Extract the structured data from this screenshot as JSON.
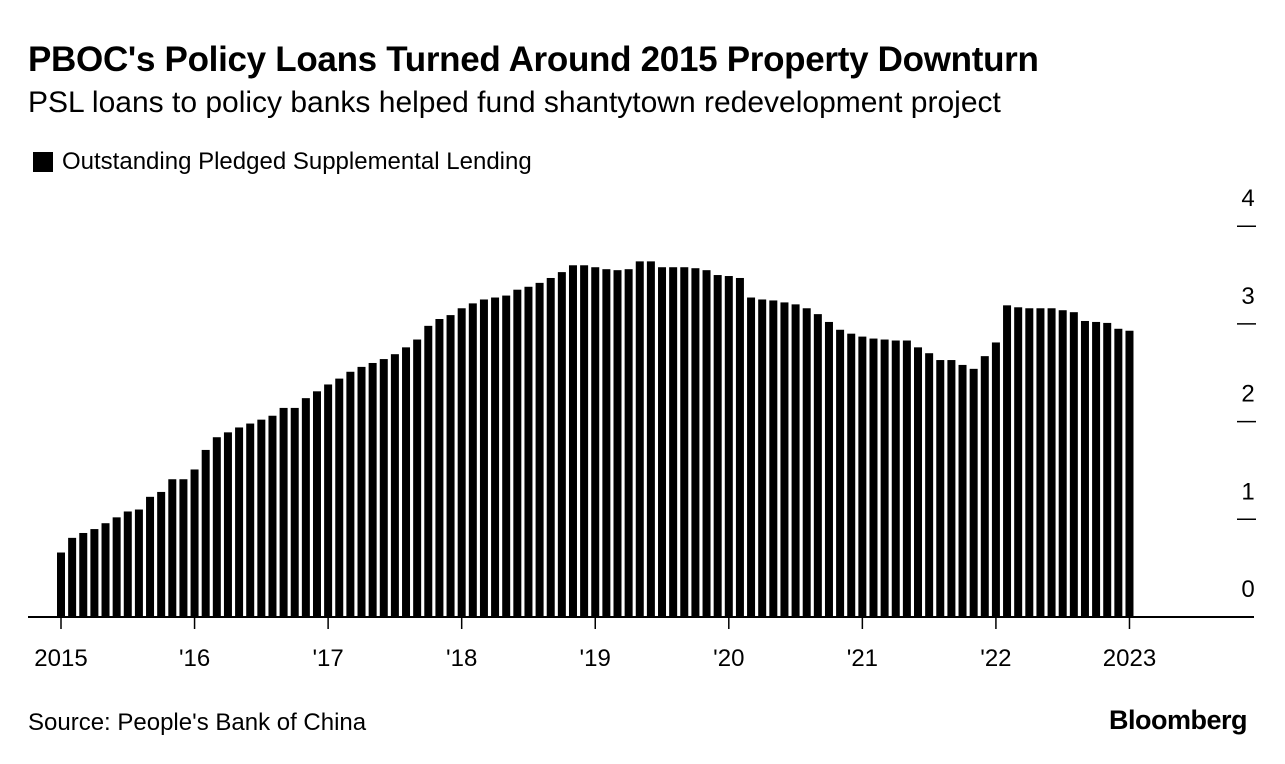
{
  "title": "PBOC's Policy Loans Turned Around 2015 Property Downturn",
  "subtitle": "PSL loans to policy banks helped fund shantytown redevelopment project",
  "source": "Source: People's Bank of China",
  "brand": "Bloomberg",
  "colors": {
    "bars": "#000000",
    "background": "#ffffff"
  },
  "chart_data": {
    "type": "bar",
    "legend": {
      "entries": [
        "Outstanding Pledged Supplemental Lending"
      ],
      "position": "top-left"
    },
    "grid": false,
    "y_axis": {
      "position": "right",
      "ylim": [
        0,
        4
      ],
      "ticks": [
        "0",
        "1",
        "2",
        "3",
        "4"
      ]
    },
    "x_axis": {
      "ticks": [
        {
          "label": "2015",
          "date": "2015-01"
        },
        {
          "label": "'16",
          "date": "2016-01"
        },
        {
          "label": "'17",
          "date": "2017-01"
        },
        {
          "label": "'18",
          "date": "2018-01"
        },
        {
          "label": "'19",
          "date": "2019-01"
        },
        {
          "label": "'20",
          "date": "2020-01"
        },
        {
          "label": "'21",
          "date": "2021-01"
        },
        {
          "label": "'22",
          "date": "2022-01"
        },
        {
          "label": "2023",
          "date": "2023-01"
        }
      ]
    },
    "x_start": "2015-01",
    "series": [
      {
        "name": "Outstanding Pledged Supplemental Lending",
        "values": [
          0.66,
          0.81,
          0.86,
          0.9,
          0.96,
          1.02,
          1.08,
          1.1,
          1.23,
          1.28,
          1.41,
          1.41,
          1.51,
          1.71,
          1.84,
          1.89,
          1.94,
          1.98,
          2.02,
          2.06,
          2.14,
          2.14,
          2.24,
          2.31,
          2.38,
          2.44,
          2.51,
          2.56,
          2.6,
          2.64,
          2.69,
          2.76,
          2.84,
          2.98,
          3.05,
          3.09,
          3.16,
          3.21,
          3.25,
          3.27,
          3.29,
          3.35,
          3.38,
          3.42,
          3.47,
          3.53,
          3.6,
          3.6,
          3.58,
          3.56,
          3.55,
          3.56,
          3.64,
          3.64,
          3.58,
          3.58,
          3.58,
          3.57,
          3.55,
          3.5,
          3.49,
          3.47,
          3.27,
          3.25,
          3.24,
          3.22,
          3.2,
          3.16,
          3.1,
          3.02,
          2.94,
          2.9,
          2.87,
          2.85,
          2.84,
          2.83,
          2.83,
          2.76,
          2.7,
          2.63,
          2.63,
          2.58,
          2.54,
          2.67,
          2.81,
          3.19,
          3.17,
          3.16,
          3.16,
          3.16,
          3.14,
          3.12,
          3.03,
          3.02,
          3.01,
          2.95,
          2.93
        ]
      }
    ]
  }
}
